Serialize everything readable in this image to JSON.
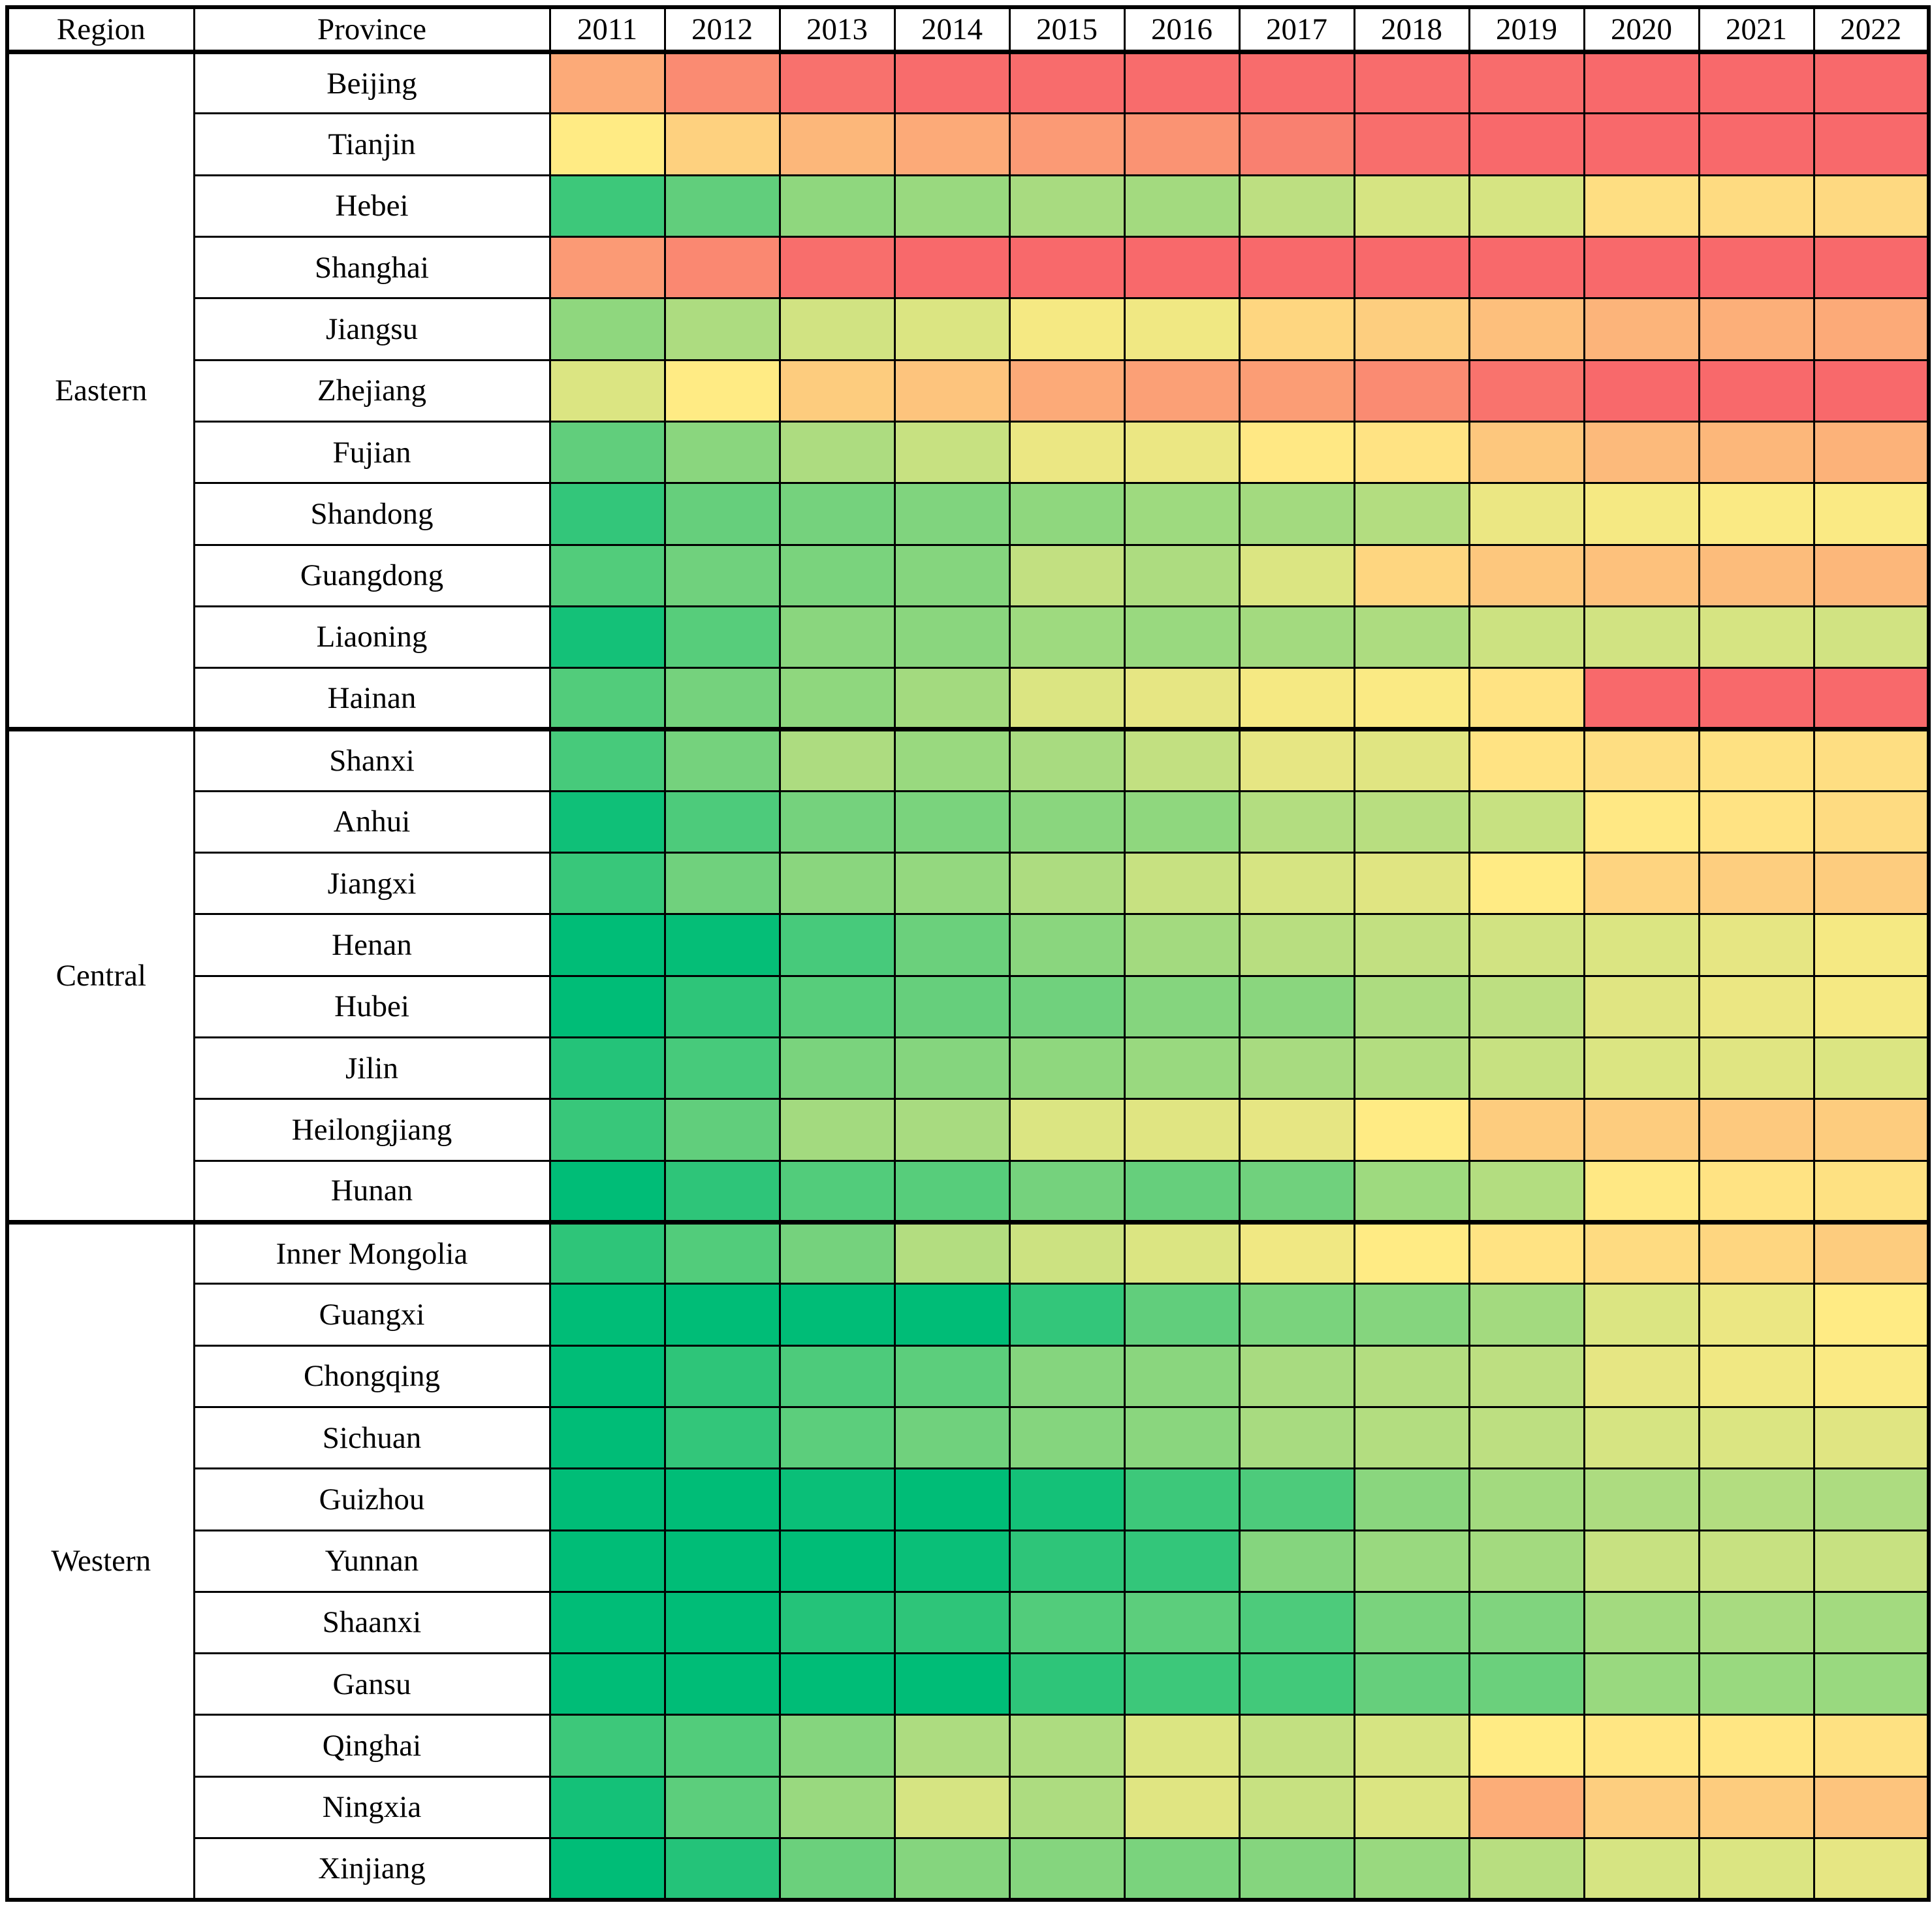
{
  "table": {
    "region_header": "Region",
    "province_header": "Province",
    "years": [
      "2011",
      "2012",
      "2013",
      "2014",
      "2015",
      "2016",
      "2017",
      "2018",
      "2019",
      "2020",
      "2021",
      "2022"
    ]
  },
  "colors": {
    "scale_min_green": "#00BD77",
    "scale_mid_yellow": "#FFEB84",
    "scale_max_red": "#F8696B",
    "grid_border": "#000000",
    "background": "#FFFFFF",
    "text": "#000000"
  },
  "chart_data": {
    "type": "heatmap",
    "title": "",
    "x": [
      "2011",
      "2012",
      "2013",
      "2014",
      "2015",
      "2016",
      "2017",
      "2018",
      "2019",
      "2020",
      "2021",
      "2022"
    ],
    "legend": "none",
    "value_scale": {
      "min": 0,
      "max": 100,
      "note": "No numeric labels are printed in the figure; values are relative color levels read from each cell: 0 = deepest green, 50 = pale yellow midpoint, 100 = deepest red."
    },
    "regions": [
      {
        "name": "Eastern",
        "provinces": [
          {
            "name": "Beijing",
            "values": [
              75,
              87,
              97,
              99,
              99,
              99,
              99,
              99,
              99,
              100,
              100,
              100
            ]
          },
          {
            "name": "Tianjin",
            "values": [
              50,
              60,
              70,
              75,
              81,
              84,
              91,
              98,
              100,
              100,
              100,
              100
            ]
          },
          {
            "name": "Hebei",
            "values": [
              12,
              19,
              28,
              30,
              33,
              32,
              37,
              42,
              42,
              55,
              56,
              57
            ]
          },
          {
            "name": "Shanghai",
            "values": [
              81,
              88,
              98,
              100,
              100,
              100,
              100,
              100,
              100,
              100,
              100,
              100
            ]
          },
          {
            "name": "Jiangsu",
            "values": [
              28,
              34,
              41,
              43,
              48,
              47,
              58,
              61,
              67,
              71,
              73,
              75
            ]
          },
          {
            "name": "Zhejiang",
            "values": [
              43,
              50,
              62,
              65,
              75,
              79,
              80,
              87,
              96,
              100,
              100,
              100
            ]
          },
          {
            "name": "Fujian",
            "values": [
              19,
              27,
              34,
              39,
              46,
              46,
              51,
              53,
              64,
              69,
              70,
              72
            ]
          },
          {
            "name": "Shandong",
            "values": [
              10,
              20,
              23,
              25,
              28,
              31,
              32,
              35,
              46,
              48,
              49,
              49
            ]
          },
          {
            "name": "Guangdong",
            "values": [
              16,
              22,
              24,
              26,
              38,
              34,
              43,
              58,
              64,
              66,
              68,
              70
            ]
          },
          {
            "name": "Liaoning",
            "values": [
              4,
              17,
              27,
              27,
              31,
              30,
              32,
              34,
              40,
              41,
              42,
              41
            ]
          },
          {
            "name": "Hainan",
            "values": [
              16,
              23,
              28,
              32,
              43,
              45,
              48,
              49,
              53,
              100,
              100,
              100
            ]
          }
        ]
      },
      {
        "name": "Central",
        "provinces": [
          {
            "name": "Shanxi",
            "values": [
              14,
              23,
              34,
              30,
              33,
              38,
              45,
              44,
              53,
              55,
              54,
              55
            ]
          },
          {
            "name": "Anhui",
            "values": [
              3,
              15,
              23,
              24,
              27,
              28,
              35,
              36,
              39,
              51,
              53,
              56
            ]
          },
          {
            "name": "Jiangxi",
            "values": [
              11,
              22,
              27,
              29,
              34,
              39,
              42,
              44,
              50,
              59,
              61,
              62
            ]
          },
          {
            "name": "Henan",
            "values": [
              0,
              1,
              14,
              21,
              27,
              32,
              36,
              38,
              41,
              43,
              45,
              48
            ]
          },
          {
            "name": "Hubei",
            "values": [
              0,
              9,
              17,
              20,
              22,
              26,
              27,
              34,
              37,
              44,
              46,
              48
            ]
          },
          {
            "name": "Jilin",
            "values": [
              7,
              14,
              24,
              26,
              28,
              30,
              33,
              35,
              39,
              43,
              44,
              43
            ]
          },
          {
            "name": "Heilongjiang",
            "values": [
              11,
              19,
              32,
              33,
              43,
              44,
              45,
              50,
              62,
              62,
              63,
              62
            ]
          },
          {
            "name": "Hunan",
            "values": [
              0,
              9,
              16,
              17,
              23,
              20,
              22,
              31,
              35,
              51,
              53,
              54
            ]
          }
        ]
      },
      {
        "name": "Western",
        "provinces": [
          {
            "name": "Inner Mongolia",
            "values": [
              9,
              16,
              23,
              35,
              40,
              43,
              47,
              50,
              53,
              56,
              58,
              62
            ]
          },
          {
            "name": "Guangxi",
            "values": [
              0,
              0,
              0,
              0,
              10,
              19,
              24,
              26,
              32,
              43,
              46,
              50
            ]
          },
          {
            "name": "Chongqing",
            "values": [
              0,
              9,
              15,
              18,
              26,
              27,
              33,
              35,
              37,
              45,
              47,
              49
            ]
          },
          {
            "name": "Sichuan",
            "values": [
              0,
              10,
              18,
              22,
              26,
              27,
              33,
              35,
              37,
              42,
              43,
              44
            ]
          },
          {
            "name": "Guizhou",
            "values": [
              0,
              0,
              2,
              0,
              4,
              12,
              15,
              27,
              32,
              34,
              35,
              34
            ]
          },
          {
            "name": "Yunnan",
            "values": [
              0,
              0,
              0,
              2,
              9,
              10,
              26,
              30,
              32,
              39,
              39,
              39
            ]
          },
          {
            "name": "Shaanxi",
            "values": [
              0,
              0,
              7,
              9,
              16,
              18,
              15,
              24,
              25,
              32,
              33,
              32
            ]
          },
          {
            "name": "Gansu",
            "values": [
              0,
              0,
              0,
              0,
              9,
              12,
              13,
              20,
              21,
              30,
              30,
              30
            ]
          },
          {
            "name": "Qinghai",
            "values": [
              12,
              16,
              26,
              34,
              34,
              43,
              38,
              42,
              50,
              52,
              52,
              54
            ]
          },
          {
            "name": "Ningxia",
            "values": [
              4,
              18,
              30,
              42,
              34,
              44,
              39,
              43,
              74,
              61,
              62,
              65
            ]
          },
          {
            "name": "Xinjiang",
            "values": [
              0,
              7,
              21,
              26,
              26,
              24,
              26,
              30,
              36,
              42,
              43,
              45
            ]
          }
        ]
      }
    ]
  }
}
